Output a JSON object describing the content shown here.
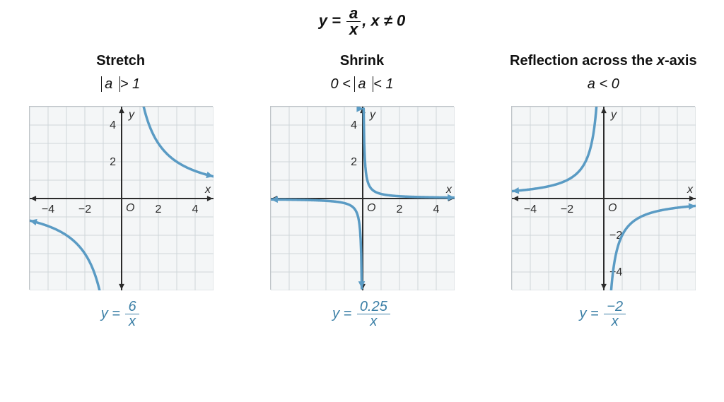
{
  "main_equation": {
    "lhs": "y",
    "numer": "a",
    "denom": "x",
    "cond": "x ≠ 0"
  },
  "axis": {
    "xmin": -5,
    "xmax": 5,
    "ymin": -5,
    "ymax": 5,
    "grid_color": "#cfd6da",
    "axis_color": "#2b2b2b",
    "tick_fontsize": 16,
    "background": "#f4f6f7"
  },
  "curve_style": {
    "color": "#5a9bc4",
    "width": 3.5
  },
  "panels": [
    {
      "title": "Stretch",
      "condition_html": "|<i>a</i>| > 1",
      "a": 6,
      "eq_numer": "6",
      "eq_denom": "x",
      "xticks": [
        -4,
        -2,
        2,
        4
      ],
      "yticks": [
        2,
        4
      ],
      "show_neg_y": false
    },
    {
      "title": "Shrink",
      "condition_html": "0 < |<i>a</i>| < 1",
      "a": 0.25,
      "eq_numer": "0.25",
      "eq_denom": "x",
      "xticks": [
        2,
        4
      ],
      "yticks": [
        2,
        4
      ],
      "show_neg_y": false
    },
    {
      "title": "Reflection across the <i>x</i>-axis",
      "condition_html": "<i>a</i> < 0",
      "a": -2,
      "eq_numer": "−2",
      "eq_denom": "x",
      "xticks": [
        -4,
        -2
      ],
      "yticks": [
        -2,
        -4
      ],
      "show_neg_y": true
    }
  ]
}
